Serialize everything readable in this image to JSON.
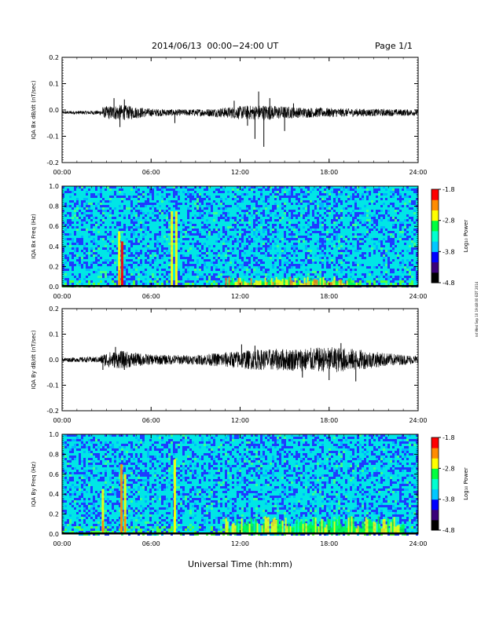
{
  "header": {
    "title": "2014/06/13  00:00−24:00 UT",
    "page": "Page 1/1"
  },
  "side_stamp": "rxt Wed Sep 10 19:48:00 EDT 2014",
  "colorbar": {
    "label": "Log₁₀ Power",
    "ticks": [
      "-1.8",
      "-2.8",
      "-3.8",
      "-4.8"
    ],
    "colors": [
      "#000000",
      "#3a007a",
      "#0000ff",
      "#00c8ff",
      "#00ffd0",
      "#00ff40",
      "#ffff00",
      "#ff8c00",
      "#ff0000"
    ]
  },
  "chart_data": [
    {
      "type": "line",
      "ylabel": "IQA Bx dB/dt (nT/sec)",
      "xlim": [
        0,
        24
      ],
      "ylim": [
        -0.2,
        0.2
      ],
      "yticks": [
        "0.2",
        "0.1",
        "0.0",
        "-0.1",
        "-0.2"
      ],
      "xticks": [
        "00:00",
        "06:00",
        "12:00",
        "18:00",
        "24:00"
      ],
      "baseline": -0.01,
      "envelope": [
        {
          "t": 0,
          "amp": 0.006
        },
        {
          "t": 2.5,
          "amp": 0.008
        },
        {
          "t": 3.0,
          "amp": 0.025
        },
        {
          "t": 4.0,
          "amp": 0.03
        },
        {
          "t": 6.0,
          "amp": 0.015
        },
        {
          "t": 8.0,
          "amp": 0.012
        },
        {
          "t": 10.0,
          "amp": 0.015
        },
        {
          "t": 12.0,
          "amp": 0.025
        },
        {
          "t": 13.5,
          "amp": 0.03
        },
        {
          "t": 16.0,
          "amp": 0.02
        },
        {
          "t": 20.0,
          "amp": 0.015
        },
        {
          "t": 24.0,
          "amp": 0.012
        }
      ],
      "spikes": [
        {
          "t": 2.75,
          "y": 0.01
        },
        {
          "t": 3.5,
          "y": 0.045
        },
        {
          "t": 3.9,
          "y": -0.065
        },
        {
          "t": 4.2,
          "y": 0.04
        },
        {
          "t": 7.6,
          "y": -0.05
        },
        {
          "t": 11.6,
          "y": 0.035
        },
        {
          "t": 12.5,
          "y": -0.06
        },
        {
          "t": 13.0,
          "y": -0.11
        },
        {
          "t": 13.25,
          "y": 0.07
        },
        {
          "t": 13.6,
          "y": -0.14
        },
        {
          "t": 14.0,
          "y": 0.045
        },
        {
          "t": 15.0,
          "y": -0.08
        },
        {
          "t": 15.6,
          "y": 0.025
        }
      ]
    },
    {
      "type": "heatmap",
      "ylabel": "IQA Bx Freq (Hz)",
      "xlim": [
        0,
        24
      ],
      "ylim": [
        0.0,
        1.0
      ],
      "yticks": [
        "1.0",
        "0.8",
        "0.6",
        "0.4",
        "0.2",
        "0.0"
      ],
      "xticks": [
        "00:00",
        "06:00",
        "12:00",
        "18:00",
        "24:00"
      ],
      "zlim": [
        -4.8,
        -1.8
      ],
      "features": [
        {
          "t": 4.05,
          "from": 0.0,
          "to": 0.45,
          "level": -1.9
        },
        {
          "t": 3.85,
          "from": 0.0,
          "to": 0.55,
          "level": -2.6
        },
        {
          "t": 7.4,
          "from": 0.0,
          "to": 0.75,
          "level": -2.7
        },
        {
          "t": 7.7,
          "from": 0.0,
          "to": 0.75,
          "level": -2.7
        }
      ],
      "low_freq_enhancement": {
        "from_t": 11.0,
        "to_t": 20.0,
        "max_freq": 0.1,
        "level": -2.2
      }
    },
    {
      "type": "line",
      "ylabel": "IQA By dB/dt (nT/sec)",
      "xlim": [
        0,
        24
      ],
      "ylim": [
        -0.2,
        0.2
      ],
      "yticks": [
        "0.2",
        "0.1",
        "0.0",
        "-0.1",
        "-0.2"
      ],
      "xticks": [
        "00:00",
        "06:00",
        "12:00",
        "18:00",
        "24:00"
      ],
      "baseline": 0.0,
      "envelope": [
        {
          "t": 0,
          "amp": 0.008
        },
        {
          "t": 2.5,
          "amp": 0.012
        },
        {
          "t": 3.0,
          "amp": 0.03
        },
        {
          "t": 4.0,
          "amp": 0.035
        },
        {
          "t": 6.0,
          "amp": 0.02
        },
        {
          "t": 9.0,
          "amp": 0.018
        },
        {
          "t": 11.0,
          "amp": 0.03
        },
        {
          "t": 13.0,
          "amp": 0.04
        },
        {
          "t": 16.0,
          "amp": 0.045
        },
        {
          "t": 18.5,
          "amp": 0.05
        },
        {
          "t": 20.0,
          "amp": 0.04
        },
        {
          "t": 22.0,
          "amp": 0.025
        },
        {
          "t": 24.0,
          "amp": 0.015
        }
      ],
      "spikes": [
        {
          "t": 2.75,
          "y": -0.04
        },
        {
          "t": 3.6,
          "y": 0.05
        },
        {
          "t": 4.2,
          "y": -0.04
        },
        {
          "t": 12.1,
          "y": 0.06
        },
        {
          "t": 13.0,
          "y": 0.055
        },
        {
          "t": 16.2,
          "y": -0.07
        },
        {
          "t": 18.0,
          "y": -0.08
        },
        {
          "t": 18.8,
          "y": 0.065
        },
        {
          "t": 19.8,
          "y": -0.085
        }
      ]
    },
    {
      "type": "heatmap",
      "ylabel": "IQA By Freq (Hz)",
      "xlim": [
        0,
        24
      ],
      "ylim": [
        0.0,
        1.0
      ],
      "yticks": [
        "1.0",
        "0.8",
        "0.6",
        "0.4",
        "0.2",
        "0.0"
      ],
      "xticks": [
        "00:00",
        "06:00",
        "12:00",
        "18:00",
        "24:00"
      ],
      "zlim": [
        -4.8,
        -1.8
      ],
      "features": [
        {
          "t": 2.75,
          "from": 0.0,
          "to": 0.45,
          "level": -2.4
        },
        {
          "t": 4.0,
          "from": 0.0,
          "to": 0.7,
          "level": -2.3
        },
        {
          "t": 4.25,
          "from": 0.0,
          "to": 0.6,
          "level": -2.5
        },
        {
          "t": 7.6,
          "from": 0.0,
          "to": 0.75,
          "level": -2.7
        }
      ],
      "low_freq_enhancement": {
        "from_t": 11.0,
        "to_t": 23.0,
        "max_freq": 0.18,
        "level": -2.4
      }
    }
  ],
  "xlabel": "Universal Time (hh:mm)"
}
